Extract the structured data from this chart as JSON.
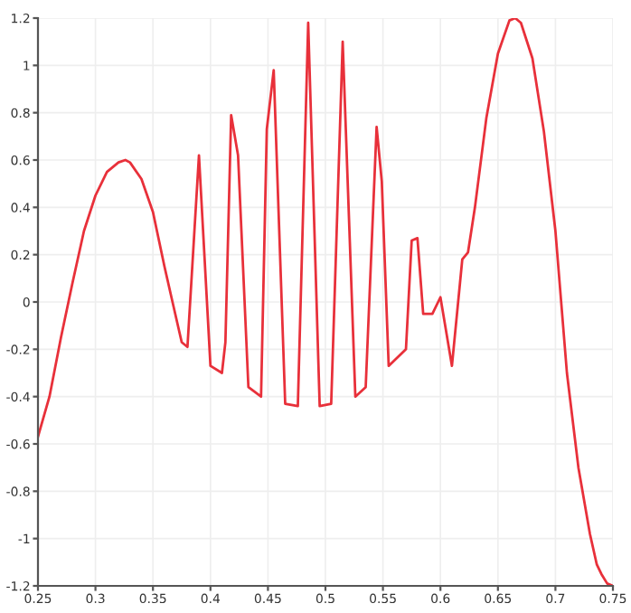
{
  "chart_data": {
    "type": "line",
    "x": [
      0.25,
      0.26,
      0.27,
      0.28,
      0.29,
      0.3,
      0.31,
      0.32,
      0.326,
      0.33,
      0.34,
      0.35,
      0.36,
      0.367,
      0.375,
      0.38,
      0.39,
      0.4,
      0.41,
      0.413,
      0.418,
      0.424,
      0.433,
      0.444,
      0.449,
      0.455,
      0.465,
      0.476,
      0.485,
      0.495,
      0.505,
      0.515,
      0.526,
      0.535,
      0.5445,
      0.549,
      0.555,
      0.57,
      0.575,
      0.58,
      0.585,
      0.593,
      0.6,
      0.61,
      0.619,
      0.624,
      0.63,
      0.64,
      0.65,
      0.66,
      0.665,
      0.67,
      0.68,
      0.69,
      0.7,
      0.705,
      0.71,
      0.72,
      0.73,
      0.736,
      0.74,
      0.745,
      0.75
    ],
    "series": [
      {
        "color": "#e8303a",
        "values": [
          -0.57,
          -0.4,
          -0.15,
          0.08,
          0.3,
          0.45,
          0.55,
          0.59,
          0.6,
          0.59,
          0.52,
          0.38,
          0.15,
          0.0,
          -0.17,
          -0.19,
          0.62,
          -0.27,
          -0.3,
          -0.17,
          0.79,
          0.62,
          -0.36,
          -0.4,
          0.73,
          0.98,
          -0.43,
          -0.44,
          1.18,
          -0.44,
          -0.43,
          1.1,
          -0.4,
          -0.36,
          0.74,
          0.51,
          -0.27,
          -0.2,
          0.26,
          0.27,
          -0.05,
          -0.05,
          0.02,
          -0.27,
          0.18,
          0.21,
          0.4,
          0.78,
          1.05,
          1.19,
          1.2,
          1.18,
          1.03,
          0.72,
          0.3,
          0.0,
          -0.3,
          -0.7,
          -0.98,
          -1.11,
          -1.15,
          -1.19,
          -1.2
        ]
      }
    ],
    "xlim": [
      0.25,
      0.75
    ],
    "ylim": [
      -1.2,
      1.2
    ],
    "xticks": [
      0.25,
      0.3,
      0.35,
      0.4,
      0.45,
      0.5,
      0.55,
      0.6,
      0.65,
      0.7,
      0.75
    ],
    "yticks": [
      -1.2,
      -1,
      -0.8,
      -0.6,
      -0.4,
      -0.2,
      0,
      0.2,
      0.4,
      0.6,
      0.8,
      1,
      1.2
    ],
    "grid": true
  }
}
